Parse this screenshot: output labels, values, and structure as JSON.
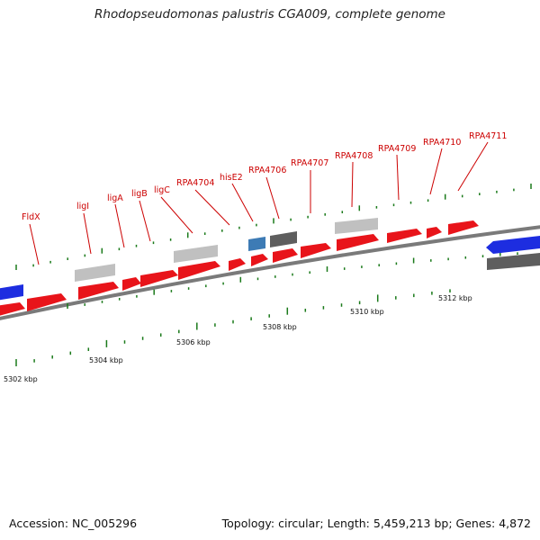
{
  "title": "Rhodopseudomonas palustris CGA009, complete genome",
  "footer": {
    "accession": "Accession: NC_005296",
    "summary": "Topology: circular; Length: 5,459,213 bp; Genes: 4,872"
  },
  "scale_labels": [
    "5302 kbp",
    "5304 kbp",
    "5306 kbp",
    "5308 kbp",
    "5310 kbp",
    "5312 kbp"
  ],
  "gene_labels": [
    "FldX",
    "ligI",
    "ligA",
    "ligB",
    "ligC",
    "RPA4704",
    "hisE2",
    "RPA4706",
    "RPA4707",
    "RPA4708",
    "RPA4709",
    "RPA4710",
    "RPA4711"
  ],
  "colors": {
    "cds": "#e8141a",
    "rna_blue": "#1d2de0",
    "light_grey": "#c0c0c0",
    "dark_grey": "#5e5e5e",
    "steel_blue": "#3d7bb5",
    "label_red": "#cc0000",
    "tick_green": "#1a7a1a",
    "backbone": "#7a7a7a"
  }
}
